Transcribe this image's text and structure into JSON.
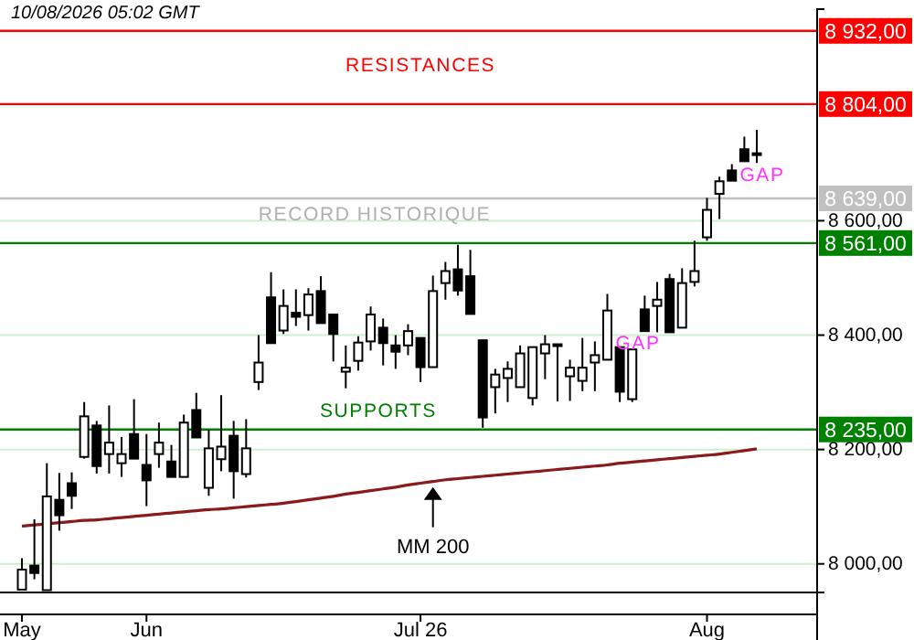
{
  "chart_data": {
    "type": "candlestick",
    "categories": [
      "May",
      null,
      null,
      null,
      null,
      null,
      null,
      null,
      null,
      null,
      "Jun",
      null,
      null,
      null,
      null,
      null,
      null,
      null,
      null,
      null,
      null,
      null,
      null,
      null,
      null,
      null,
      null,
      null,
      null,
      null,
      null,
      null,
      "Jul 26",
      null,
      null,
      null,
      null,
      null,
      null,
      null,
      null,
      null,
      null,
      null,
      null,
      null,
      null,
      null,
      null,
      null,
      null,
      null,
      null,
      null,
      null,
      "Aug",
      null,
      null,
      null,
      null
    ],
    "ohlc": [
      [
        7955,
        8010,
        7955,
        7990
      ],
      [
        7997,
        8078,
        7973,
        7984
      ],
      [
        7954,
        8176,
        7954,
        8118
      ],
      [
        8112,
        8159,
        8058,
        8085
      ],
      [
        8141,
        8160,
        8096,
        8119
      ],
      [
        8187,
        8283,
        8184,
        8258
      ],
      [
        8242,
        8250,
        8158,
        8171
      ],
      [
        8192,
        8277,
        8158,
        8212
      ],
      [
        8176,
        8222,
        8152,
        8192
      ],
      [
        8227,
        8288,
        8184,
        8184
      ],
      [
        8173,
        8227,
        8101,
        8146
      ],
      [
        8192,
        8247,
        8168,
        8212
      ],
      [
        8179,
        8208,
        8152,
        8152
      ],
      [
        8152,
        8261,
        8152,
        8247
      ],
      [
        8269,
        8299,
        8221,
        8221
      ],
      [
        8133,
        8235,
        8119,
        8202
      ],
      [
        8183,
        8295,
        8162,
        8205
      ],
      [
        8224,
        8250,
        8114,
        8162
      ],
      [
        8157,
        8253,
        8151,
        8202
      ],
      [
        8318,
        8400,
        8304,
        8352
      ],
      [
        8466,
        8510,
        8386,
        8386
      ],
      [
        8408,
        8480,
        8402,
        8451
      ],
      [
        8439,
        8480,
        8416,
        8432
      ],
      [
        8435,
        8482,
        8408,
        8471
      ],
      [
        8477,
        8503,
        8421,
        8421
      ],
      [
        8436,
        8436,
        8354,
        8402
      ],
      [
        8336,
        8382,
        8307,
        8343
      ],
      [
        8355,
        8398,
        8338,
        8387
      ],
      [
        8389,
        8450,
        8373,
        8436
      ],
      [
        8413,
        8429,
        8347,
        8386
      ],
      [
        8382,
        8400,
        8341,
        8371
      ],
      [
        8382,
        8419,
        8365,
        8407
      ],
      [
        8395,
        8395,
        8318,
        8344
      ],
      [
        8344,
        8504,
        8344,
        8477
      ],
      [
        8491,
        8528,
        8462,
        8512
      ],
      [
        8515,
        8558,
        8469,
        8478
      ],
      [
        8503,
        8549,
        8437,
        8437
      ],
      [
        8391,
        8391,
        8238,
        8256
      ],
      [
        8309,
        8341,
        8263,
        8331
      ],
      [
        8325,
        8354,
        8283,
        8341
      ],
      [
        8309,
        8382,
        8309,
        8368
      ],
      [
        8290,
        8379,
        8277,
        8379
      ],
      [
        8368,
        8400,
        8323,
        8384
      ],
      [
        8384,
        8384,
        8284,
        8381
      ],
      [
        8328,
        8357,
        8285,
        8343
      ],
      [
        8320,
        8395,
        8302,
        8343
      ],
      [
        8352,
        8389,
        8302,
        8365
      ],
      [
        8357,
        8472,
        8357,
        8443
      ],
      [
        8379,
        8379,
        8283,
        8301
      ],
      [
        8288,
        8375,
        8283,
        8375
      ],
      [
        8445,
        8469,
        8407,
        8407
      ],
      [
        8451,
        8493,
        8405,
        8462
      ],
      [
        8498,
        8507,
        8405,
        8405
      ],
      [
        8413,
        8517,
        8413,
        8491
      ],
      [
        8493,
        8565,
        8485,
        8512
      ],
      [
        8571,
        8640,
        8565,
        8619
      ],
      [
        8647,
        8677,
        8603,
        8669
      ],
      [
        8688,
        8699,
        8670,
        8670
      ],
      [
        8725,
        8747,
        8704,
        8704
      ],
      [
        8717,
        8759,
        8701,
        8718
      ]
    ],
    "series": [
      {
        "name": "MM 200",
        "type": "line",
        "color": "#8b1a1a",
        "values": [
          8066,
          8068,
          8070,
          8072,
          8074,
          8076,
          8077,
          8079,
          8081,
          8083,
          8085,
          8087,
          8089,
          8091,
          8093,
          8095,
          8096,
          8098,
          8100,
          8102,
          8104,
          8106,
          8109,
          8112,
          8115,
          8118,
          8122,
          8125,
          8128,
          8131,
          8134,
          8138,
          8141,
          8144,
          8147,
          8149,
          8151,
          8153,
          8155,
          8157,
          8159,
          8161,
          8163,
          8165,
          8167,
          8169,
          8171,
          8173,
          8176,
          8178,
          8180,
          8182,
          8184,
          8186,
          8188,
          8190,
          8192,
          8195,
          8198,
          8201
        ]
      }
    ],
    "ylim": [
      7950,
      8970
    ],
    "yticks": [
      {
        "value": 8000,
        "label": "8 000,00"
      },
      {
        "value": 8200,
        "label": "8 200,00"
      },
      {
        "value": 8400,
        "label": "8 400,00"
      },
      {
        "value": 8600,
        "label": "8 600,00"
      }
    ],
    "grid": "y",
    "ref_lines": [
      {
        "axis": "y",
        "value": 8932,
        "label": "8 932,00",
        "color": "#ff0000"
      },
      {
        "axis": "y",
        "value": 8804,
        "label": "8 804,00",
        "color": "#ff0000"
      },
      {
        "axis": "y",
        "value": 8639,
        "label": "8 639,00",
        "color": "#c0c0c0"
      },
      {
        "axis": "y",
        "value": 8561,
        "label": "8 561,00",
        "color": "#008000"
      },
      {
        "axis": "y",
        "value": 8235,
        "label": "8 235,00",
        "color": "#008000"
      }
    ],
    "annotations": [
      "10/08/2026 05:02 GMT",
      "RESISTANCES",
      {
        "text": "RECORD HISTORIQUE",
        "y": 8639
      },
      "SUPPORTS",
      "GAP",
      "GAP"
    ]
  }
}
